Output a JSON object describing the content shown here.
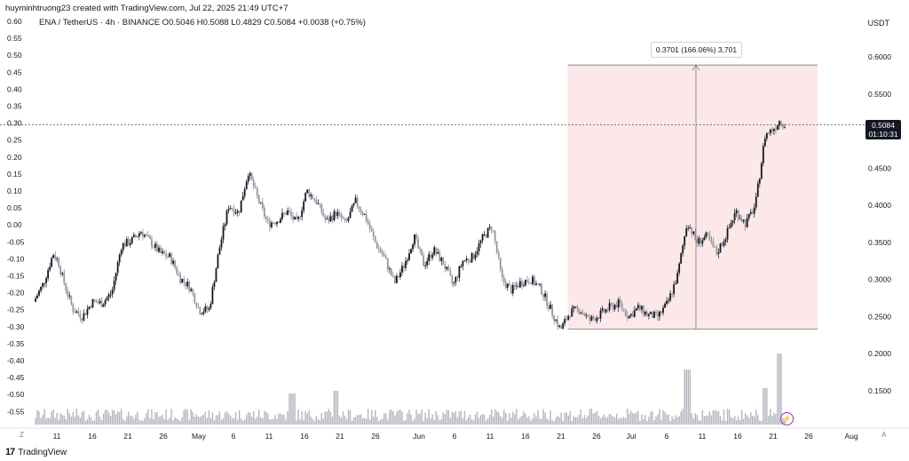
{
  "header": {
    "credit": "huyminhtruong23 created with TradingView.com, Jul 22, 2025 21:49 UTC+7",
    "symbol_line": "ENA / TetherUS · 4h · BINANCE  O0.5046  H0.5088  L0.4829  C0.5084  +0.0038 (+0.75%)",
    "currency": "USDT"
  },
  "price_tag": {
    "price": "0.5084",
    "countdown": "01:10:31"
  },
  "measure": {
    "label": "0.3701 (166.06%) 3,701"
  },
  "footer": {
    "logo": "17",
    "brand": "TradingView"
  },
  "scroll": {
    "left": "Z",
    "right": "A"
  },
  "icons": {
    "flash": "lightning-icon",
    "accent": "#9c27b0"
  },
  "colors": {
    "candle": "#131722",
    "measure_fill": "#fce8e8",
    "volume": "#b2b5be"
  },
  "chart_data": {
    "type": "candlestick",
    "title": "ENA / TetherUS · 4h · BINANCE",
    "left_axis_ticks": [
      "0.60",
      "0.55",
      "0.50",
      "0.45",
      "0.40",
      "0.35",
      "0.30",
      "0.25",
      "0.20",
      "0.15",
      "0.10",
      "0.05",
      "0.00",
      "-0.05",
      "-0.10",
      "-0.15",
      "-0.20",
      "-0.25",
      "-0.30",
      "-0.35",
      "-0.40",
      "-0.45",
      "-0.50",
      "-0.55"
    ],
    "right_axis_ticks": [
      "0.6000",
      "0.5500",
      "0.5000",
      "0.4500",
      "0.4000",
      "0.3500",
      "0.3000",
      "0.2500",
      "0.2000",
      "0.1500"
    ],
    "x_ticks": [
      "11",
      "16",
      "21",
      "26",
      "May",
      "6",
      "11",
      "16",
      "21",
      "26",
      "Jun",
      "6",
      "11",
      "16",
      "21",
      "26",
      "Jul",
      "6",
      "11",
      "16",
      "21",
      "26",
      "Aug"
    ],
    "ylim": [
      0.13,
      0.615
    ],
    "close_path": [
      [
        0,
        0.27
      ],
      [
        0.02,
        0.295
      ],
      [
        0.04,
        0.335
      ],
      [
        0.05,
        0.325
      ],
      [
        0.06,
        0.3
      ],
      [
        0.08,
        0.26
      ],
      [
        0.1,
        0.25
      ],
      [
        0.12,
        0.27
      ],
      [
        0.14,
        0.268
      ],
      [
        0.16,
        0.282
      ],
      [
        0.18,
        0.346
      ],
      [
        0.2,
        0.352
      ],
      [
        0.22,
        0.365
      ],
      [
        0.24,
        0.35
      ],
      [
        0.26,
        0.335
      ],
      [
        0.28,
        0.33
      ],
      [
        0.3,
        0.302
      ],
      [
        0.32,
        0.29
      ],
      [
        0.34,
        0.258
      ],
      [
        0.36,
        0.26
      ],
      [
        0.38,
        0.34
      ],
      [
        0.4,
        0.4
      ],
      [
        0.42,
        0.39
      ],
      [
        0.44,
        0.445
      ],
      [
        0.46,
        0.408
      ],
      [
        0.48,
        0.375
      ],
      [
        0.5,
        0.38
      ],
      [
        0.52,
        0.392
      ],
      [
        0.54,
        0.375
      ],
      [
        0.56,
        0.42
      ],
      [
        0.58,
        0.405
      ],
      [
        0.6,
        0.378
      ],
      [
        0.62,
        0.39
      ],
      [
        0.64,
        0.375
      ],
      [
        0.66,
        0.405
      ],
      [
        0.68,
        0.385
      ],
      [
        0.7,
        0.35
      ],
      [
        0.72,
        0.328
      ],
      [
        0.74,
        0.295
      ],
      [
        0.76,
        0.32
      ],
      [
        0.78,
        0.358
      ],
      [
        0.8,
        0.32
      ],
      [
        0.82,
        0.34
      ],
      [
        0.84,
        0.322
      ],
      [
        0.86,
        0.292
      ],
      [
        0.88,
        0.325
      ],
      [
        0.9,
        0.33
      ],
      [
        0.92,
        0.355
      ],
      [
        0.94,
        0.372
      ],
      [
        0.96,
        0.3
      ],
      [
        0.98,
        0.285
      ],
      [
        1.0,
        0.297
      ],
      [
        1.02,
        0.3
      ],
      [
        1.04,
        0.287
      ],
      [
        1.06,
        0.26
      ],
      [
        1.08,
        0.232
      ],
      [
        1.1,
        0.256
      ],
      [
        1.12,
        0.26
      ],
      [
        1.14,
        0.245
      ],
      [
        1.16,
        0.252
      ],
      [
        1.18,
        0.262
      ],
      [
        1.2,
        0.268
      ],
      [
        1.22,
        0.25
      ],
      [
        1.24,
        0.262
      ],
      [
        1.26,
        0.252
      ],
      [
        1.28,
        0.25
      ],
      [
        1.3,
        0.268
      ],
      [
        1.32,
        0.305
      ],
      [
        1.34,
        0.378
      ],
      [
        1.36,
        0.35
      ],
      [
        1.38,
        0.358
      ],
      [
        1.4,
        0.335
      ],
      [
        1.42,
        0.36
      ],
      [
        1.44,
        0.392
      ],
      [
        1.46,
        0.375
      ],
      [
        1.48,
        0.4
      ],
      [
        1.5,
        0.495
      ],
      [
        1.52,
        0.505
      ],
      [
        1.53,
        0.515
      ],
      [
        1.54,
        0.508
      ]
    ],
    "measure": {
      "from": 0.233,
      "to": 0.589,
      "change": "0.3701 (166.06%) 3,701"
    },
    "last_price": 0.5084,
    "volume_spikes": [
      {
        "t": 0.53,
        "v": 0.25
      },
      {
        "t": 0.62,
        "v": 0.3
      },
      {
        "t": 1.34,
        "v": 0.7
      },
      {
        "t": 1.53,
        "v": 1.0
      },
      {
        "t": 1.5,
        "v": 0.35
      }
    ]
  }
}
